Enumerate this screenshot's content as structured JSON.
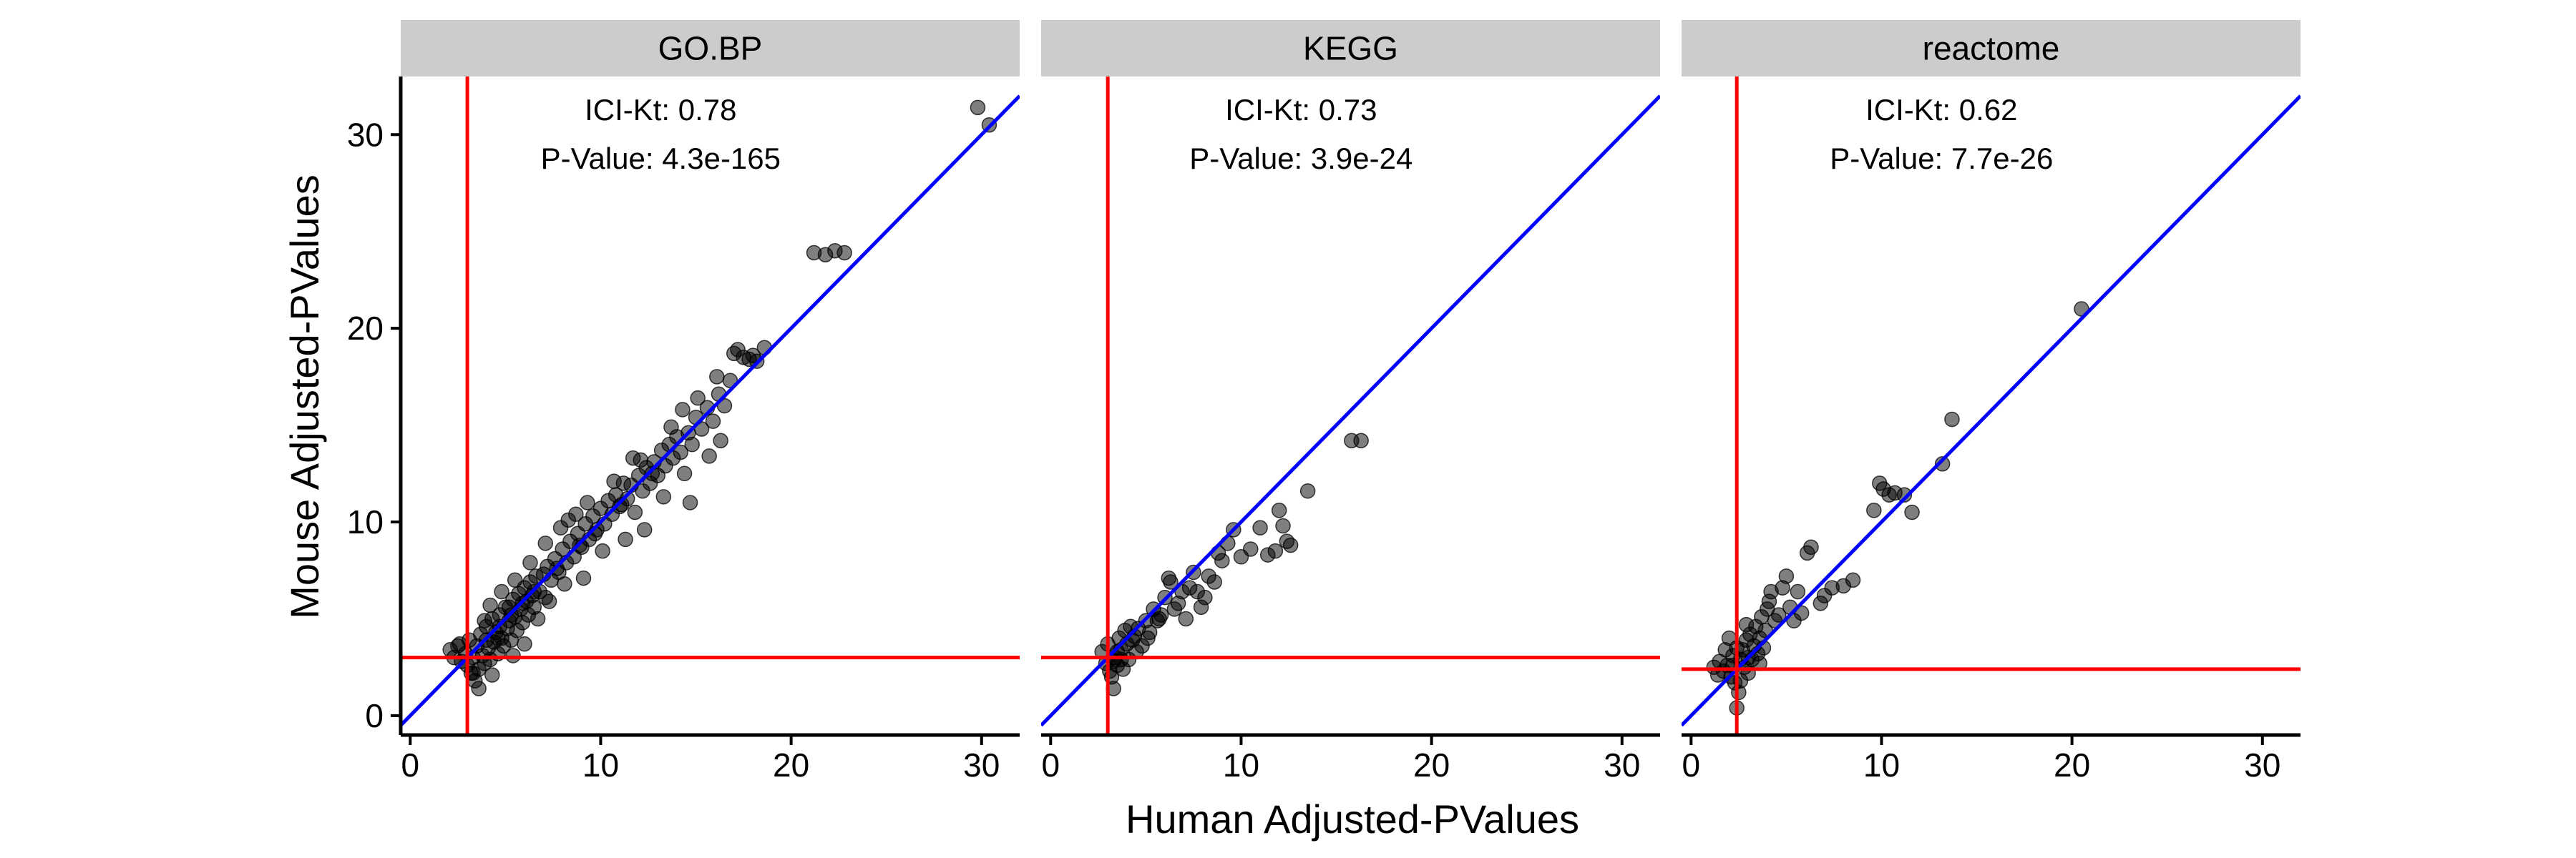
{
  "chart_data": {
    "type": "scatter",
    "xlabel": "Human Adjusted-PValues",
    "ylabel": "Mouse Adjusted-PValues",
    "xlim": [
      -0.5,
      32
    ],
    "ylim": [
      -1,
      33
    ],
    "x_ticks": [
      0,
      10,
      20,
      30
    ],
    "y_ticks": [
      0,
      10,
      20,
      30
    ],
    "colors": {
      "points": "#000000",
      "identity_line": "#0000ff",
      "threshold_lines": "#ff0000",
      "strip_background": "#cccccc"
    },
    "panels": [
      {
        "strip": "GO.BP",
        "annotation": {
          "kt": "ICI-Kt: 0.78",
          "pvalue": "P-Value: 4.3e-165"
        },
        "thresholds": {
          "x": 3.0,
          "y": 3.0
        },
        "points": [
          [
            2.1,
            3.4
          ],
          [
            2.3,
            3.0
          ],
          [
            2.5,
            3.6
          ],
          [
            2.7,
            2.8
          ],
          [
            2.9,
            3.2
          ],
          [
            3.0,
            2.6
          ],
          [
            3.1,
            3.9
          ],
          [
            3.2,
            2.2
          ],
          [
            3.3,
            3.0
          ],
          [
            3.4,
            1.8
          ],
          [
            3.5,
            3.6
          ],
          [
            3.6,
            2.4
          ],
          [
            3.7,
            4.2
          ],
          [
            3.8,
            3.1
          ],
          [
            3.9,
            2.7
          ],
          [
            4.0,
            4.6
          ],
          [
            4.1,
            3.5
          ],
          [
            4.2,
            2.9
          ],
          [
            4.3,
            5.0
          ],
          [
            4.4,
            3.8
          ],
          [
            4.5,
            4.3
          ],
          [
            4.6,
            3.2
          ],
          [
            4.7,
            5.2
          ],
          [
            4.8,
            4.0
          ],
          [
            4.9,
            3.6
          ],
          [
            5.0,
            5.6
          ],
          [
            5.1,
            4.5
          ],
          [
            5.2,
            4.9
          ],
          [
            5.3,
            3.9
          ],
          [
            5.4,
            6.0
          ],
          [
            5.5,
            5.1
          ],
          [
            5.6,
            4.4
          ],
          [
            5.7,
            6.3
          ],
          [
            5.8,
            5.5
          ],
          [
            5.9,
            4.8
          ],
          [
            6.0,
            6.6
          ],
          [
            6.1,
            5.9
          ],
          [
            6.2,
            5.2
          ],
          [
            6.3,
            6.9
          ],
          [
            6.4,
            6.2
          ],
          [
            6.5,
            5.6
          ],
          [
            6.6,
            7.2
          ],
          [
            6.8,
            6.4
          ],
          [
            7.0,
            7.3
          ],
          [
            7.1,
            6.1
          ],
          [
            7.2,
            7.7
          ],
          [
            7.4,
            7.0
          ],
          [
            7.6,
            8.1
          ],
          [
            7.8,
            7.4
          ],
          [
            8.0,
            8.6
          ],
          [
            8.2,
            7.9
          ],
          [
            8.4,
            9.0
          ],
          [
            8.6,
            8.2
          ],
          [
            8.8,
            9.4
          ],
          [
            9.0,
            8.7
          ],
          [
            9.2,
            9.9
          ],
          [
            9.4,
            9.1
          ],
          [
            9.6,
            10.3
          ],
          [
            9.8,
            9.6
          ],
          [
            10.0,
            10.7
          ],
          [
            10.2,
            9.9
          ],
          [
            10.4,
            11.1
          ],
          [
            10.6,
            10.4
          ],
          [
            10.8,
            11.4
          ],
          [
            11.0,
            10.8
          ],
          [
            11.2,
            12.0
          ],
          [
            11.4,
            11.2
          ],
          [
            11.6,
            11.9
          ],
          [
            11.8,
            10.5
          ],
          [
            12.0,
            12.4
          ],
          [
            12.2,
            11.6
          ],
          [
            12.4,
            12.8
          ],
          [
            12.6,
            12.0
          ],
          [
            12.8,
            13.1
          ],
          [
            13.0,
            12.4
          ],
          [
            13.2,
            13.7
          ],
          [
            13.4,
            12.9
          ],
          [
            13.6,
            14.0
          ],
          [
            13.8,
            13.3
          ],
          [
            14.0,
            14.4
          ],
          [
            14.2,
            13.6
          ],
          [
            14.4,
            12.5
          ],
          [
            14.6,
            14.6
          ],
          [
            14.8,
            14.0
          ],
          [
            15.0,
            15.4
          ],
          [
            15.3,
            14.8
          ],
          [
            15.6,
            15.9
          ],
          [
            15.9,
            15.2
          ],
          [
            16.2,
            16.6
          ],
          [
            16.5,
            16.0
          ],
          [
            16.8,
            17.3
          ],
          [
            17.0,
            18.7
          ],
          [
            17.2,
            18.9
          ],
          [
            17.5,
            18.5
          ],
          [
            17.8,
            18.4
          ],
          [
            18.0,
            18.6
          ],
          [
            18.2,
            18.3
          ],
          [
            18.6,
            19.0
          ],
          [
            4.6,
            4.0
          ],
          [
            5.2,
            5.6
          ],
          [
            21.2,
            23.9
          ],
          [
            21.8,
            23.8
          ],
          [
            22.3,
            24.0
          ],
          [
            22.8,
            23.9
          ],
          [
            29.8,
            31.4
          ],
          [
            30.4,
            30.5
          ],
          [
            6.7,
            5.0
          ],
          [
            7.3,
            5.9
          ],
          [
            8.1,
            6.8
          ],
          [
            9.1,
            7.1
          ],
          [
            10.1,
            8.5
          ],
          [
            11.3,
            9.1
          ],
          [
            12.3,
            9.6
          ],
          [
            13.3,
            11.3
          ],
          [
            14.7,
            11.0
          ],
          [
            15.7,
            13.4
          ],
          [
            16.3,
            14.2
          ],
          [
            5.4,
            3.1
          ],
          [
            6.0,
            3.7
          ],
          [
            4.3,
            2.1
          ],
          [
            3.6,
            1.4
          ],
          [
            3.3,
            2.2
          ],
          [
            2.6,
            3.7
          ],
          [
            3.9,
            4.9
          ],
          [
            4.2,
            5.7
          ],
          [
            4.8,
            6.4
          ],
          [
            5.5,
            7.0
          ],
          [
            6.3,
            7.9
          ],
          [
            7.1,
            8.9
          ],
          [
            8.3,
            10.1
          ],
          [
            9.3,
            11.0
          ],
          [
            10.7,
            12.1
          ],
          [
            12.1,
            13.2
          ],
          [
            13.7,
            14.9
          ],
          [
            15.1,
            16.4
          ],
          [
            16.1,
            17.5
          ],
          [
            7.9,
            9.7
          ],
          [
            8.7,
            10.4
          ],
          [
            11.7,
            13.3
          ],
          [
            14.3,
            15.8
          ],
          [
            4.0,
            3.9
          ],
          [
            4.7,
            4.6
          ],
          [
            5.3,
            5.2
          ],
          [
            5.9,
            5.8
          ],
          [
            6.5,
            6.4
          ],
          [
            7.7,
            7.6
          ],
          [
            8.9,
            8.8
          ],
          [
            9.7,
            9.4
          ],
          [
            11.1,
            10.9
          ],
          [
            12.7,
            12.5
          ]
        ]
      },
      {
        "strip": "KEGG",
        "annotation": {
          "kt": "ICI-Kt: 0.73",
          "pvalue": "P-Value: 3.9e-24"
        },
        "thresholds": {
          "x": 3.0,
          "y": 3.0
        },
        "points": [
          [
            2.7,
            3.3
          ],
          [
            2.9,
            2.7
          ],
          [
            3.0,
            3.7
          ],
          [
            3.1,
            2.3
          ],
          [
            3.2,
            2.0
          ],
          [
            3.3,
            1.4
          ],
          [
            3.4,
            3.0
          ],
          [
            3.5,
            2.6
          ],
          [
            3.6,
            4.0
          ],
          [
            3.7,
            3.4
          ],
          [
            3.8,
            2.4
          ],
          [
            3.9,
            4.4
          ],
          [
            4.0,
            3.7
          ],
          [
            4.1,
            2.9
          ],
          [
            4.2,
            4.6
          ],
          [
            4.3,
            3.9
          ],
          [
            4.4,
            4.1
          ],
          [
            4.6,
            4.5
          ],
          [
            4.8,
            3.6
          ],
          [
            5.0,
            4.9
          ],
          [
            5.2,
            4.3
          ],
          [
            5.4,
            5.5
          ],
          [
            5.6,
            4.9
          ],
          [
            5.8,
            5.2
          ],
          [
            6.0,
            6.1
          ],
          [
            6.2,
            7.1
          ],
          [
            6.3,
            6.9
          ],
          [
            6.5,
            5.5
          ],
          [
            6.7,
            5.8
          ],
          [
            6.9,
            6.4
          ],
          [
            7.1,
            5.0
          ],
          [
            7.3,
            6.6
          ],
          [
            7.5,
            7.4
          ],
          [
            7.7,
            6.4
          ],
          [
            7.9,
            5.6
          ],
          [
            8.1,
            6.1
          ],
          [
            8.3,
            7.2
          ],
          [
            8.6,
            6.9
          ],
          [
            8.8,
            8.4
          ],
          [
            9.0,
            8.0
          ],
          [
            9.3,
            8.9
          ],
          [
            9.6,
            9.6
          ],
          [
            10.0,
            8.2
          ],
          [
            10.5,
            8.6
          ],
          [
            11.0,
            9.7
          ],
          [
            11.4,
            8.3
          ],
          [
            11.8,
            8.5
          ],
          [
            12.0,
            10.6
          ],
          [
            12.2,
            9.8
          ],
          [
            12.4,
            9.0
          ],
          [
            12.6,
            8.8
          ],
          [
            13.5,
            11.6
          ],
          [
            15.8,
            14.2
          ],
          [
            16.3,
            14.2
          ],
          [
            3.3,
            2.8
          ],
          [
            3.5,
            3.3
          ],
          [
            4.5,
            3.3
          ],
          [
            5.1,
            4.0
          ],
          [
            5.7,
            5.0
          ],
          [
            3.7,
            2.9
          ]
        ]
      },
      {
        "strip": "reactome",
        "annotation": {
          "kt": "ICI-Kt: 0.62",
          "pvalue": "P-Value: 7.7e-26"
        },
        "thresholds": {
          "x": 2.4,
          "y": 2.4
        },
        "points": [
          [
            1.2,
            2.5
          ],
          [
            1.5,
            2.8
          ],
          [
            1.7,
            2.3
          ],
          [
            1.9,
            2.6
          ],
          [
            2.0,
            4.0
          ],
          [
            2.1,
            2.0
          ],
          [
            2.2,
            3.1
          ],
          [
            2.3,
            1.7
          ],
          [
            2.4,
            0.4
          ],
          [
            2.5,
            1.2
          ],
          [
            2.6,
            2.9
          ],
          [
            2.7,
            3.4
          ],
          [
            2.8,
            2.5
          ],
          [
            2.9,
            3.9
          ],
          [
            3.0,
            2.2
          ],
          [
            3.1,
            4.2
          ],
          [
            3.2,
            2.9
          ],
          [
            3.3,
            3.6
          ],
          [
            3.4,
            4.6
          ],
          [
            3.5,
            3.2
          ],
          [
            3.6,
            4.0
          ],
          [
            3.7,
            5.1
          ],
          [
            3.8,
            3.5
          ],
          [
            3.9,
            4.4
          ],
          [
            4.0,
            5.5
          ],
          [
            4.1,
            5.9
          ],
          [
            4.2,
            6.4
          ],
          [
            4.4,
            4.9
          ],
          [
            4.6,
            5.2
          ],
          [
            4.8,
            6.6
          ],
          [
            5.0,
            7.2
          ],
          [
            5.2,
            5.6
          ],
          [
            5.4,
            4.9
          ],
          [
            5.6,
            6.4
          ],
          [
            5.8,
            5.3
          ],
          [
            6.1,
            8.4
          ],
          [
            6.3,
            8.7
          ],
          [
            6.8,
            5.8
          ],
          [
            7.0,
            6.2
          ],
          [
            7.4,
            6.6
          ],
          [
            8.0,
            6.7
          ],
          [
            8.5,
            7.0
          ],
          [
            9.6,
            10.6
          ],
          [
            9.9,
            12.0
          ],
          [
            10.1,
            11.7
          ],
          [
            10.4,
            11.4
          ],
          [
            10.7,
            11.5
          ],
          [
            11.2,
            11.4
          ],
          [
            11.6,
            10.5
          ],
          [
            13.2,
            13.0
          ],
          [
            13.7,
            15.3
          ],
          [
            20.5,
            21.0
          ],
          [
            1.8,
            3.4
          ],
          [
            2.2,
            2.6
          ],
          [
            2.6,
            1.8
          ],
          [
            3.0,
            3.0
          ],
          [
            3.6,
            2.7
          ],
          [
            2.4,
            3.5
          ],
          [
            1.4,
            2.1
          ],
          [
            2.9,
            4.7
          ]
        ]
      }
    ]
  }
}
